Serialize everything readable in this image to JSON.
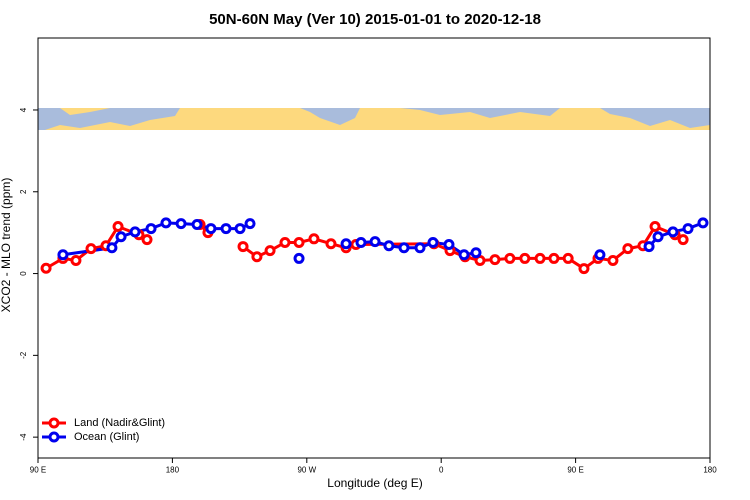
{
  "chart_data": {
    "type": "line",
    "title": "50N-60N May (Ver 10)   2015-01-01 to 2020-12-18",
    "x_label": "Longitude (deg E)",
    "y_label": "XCO2 - MLO trend (ppm)",
    "xlim": [
      90,
      540
    ],
    "xticks": [
      {
        "value": 90,
        "label": "90 E"
      },
      180,
      {
        "value": 270,
        "label": "90 W"
      },
      {
        "value": 360,
        "label": "0"
      },
      {
        "value": 450,
        "label": "90 E"
      },
      {
        "value": 540,
        "label": "180"
      }
    ],
    "ylim": [
      -4.51,
      5.76
    ],
    "yticks": [
      -4,
      -2,
      0,
      2,
      4
    ],
    "legend": "bottom-left",
    "series": [
      {
        "name": "Land (Nadir&Glint)",
        "color": "#ff0000",
        "x": [
          95.4,
          106.7,
          115.4,
          125.5,
          135.5,
          143.6,
          157.6,
          163,
          null,
          198.5,
          203.8,
          null,
          227.3,
          236.6,
          245.4,
          255.4,
          264.8,
          274.8,
          286.2,
          296.3,
          302.9,
          355.2,
          365.9,
          376,
          386,
          396,
          406,
          416,
          426.2,
          435.5,
          445,
          455.6,
          465,
          475,
          485,
          495.1,
          503.2,
          516.6,
          522
        ],
        "values": [
          0.13,
          0.37,
          0.32,
          0.61,
          0.68,
          1.15,
          0.95,
          0.83,
          null,
          1.2,
          1.0,
          null,
          0.66,
          0.41,
          0.56,
          0.76,
          0.76,
          0.85,
          0.73,
          0.63,
          0.71,
          0.73,
          0.56,
          0.41,
          0.32,
          0.34,
          0.37,
          0.37,
          0.37,
          0.37,
          0.37,
          0.12,
          0.37,
          0.32,
          0.61,
          0.68,
          1.15,
          0.95,
          0.83
        ]
      },
      {
        "name": "Ocean (Glint)",
        "color": "#0000ee",
        "x": [
          106.7,
          139.5,
          145.6,
          155,
          165.7,
          175.7,
          185.8,
          196.5,
          205.8,
          215.9,
          225.3,
          232,
          null,
          264.8,
          null,
          296.3,
          306.3,
          315.7,
          325,
          335.1,
          345.8,
          354.5,
          365.2,
          375.3,
          383.3,
          null,
          466.3,
          null,
          499.2,
          505.2,
          515.2,
          525.3,
          535.3
        ],
        "values": [
          0.46,
          0.63,
          0.9,
          1.02,
          1.1,
          1.24,
          1.22,
          1.2,
          1.1,
          1.1,
          1.1,
          1.22,
          null,
          0.37,
          null,
          0.73,
          0.76,
          0.78,
          0.68,
          0.63,
          0.63,
          0.76,
          0.71,
          0.46,
          0.51,
          null,
          0.46,
          null,
          0.66,
          0.9,
          1.02,
          1.1,
          1.24
        ]
      }
    ]
  }
}
